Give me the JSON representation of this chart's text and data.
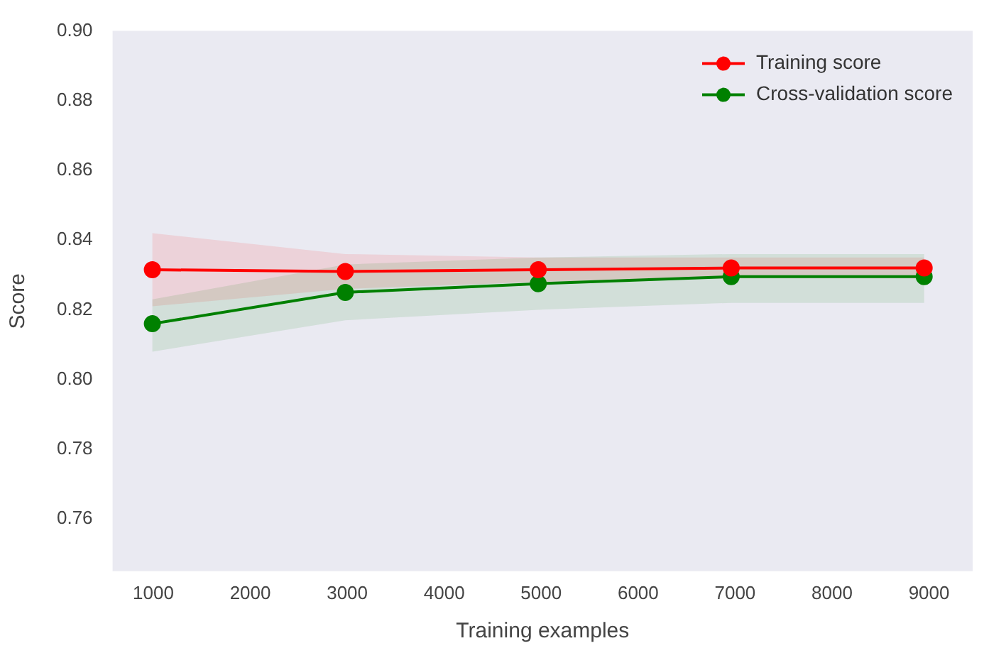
{
  "chart_data": {
    "type": "line",
    "xlabel": "Training examples",
    "ylabel": "Score",
    "x": [
      990,
      2980,
      4970,
      6960,
      8950
    ],
    "xlim": [
      580,
      9450
    ],
    "xticks": [
      1000,
      2000,
      3000,
      4000,
      5000,
      6000,
      7000,
      8000,
      9000
    ],
    "ylim": [
      0.745,
      0.9
    ],
    "yticks": [
      {
        "value": 0.76,
        "label": "0.76"
      },
      {
        "value": 0.78,
        "label": "0.78"
      },
      {
        "value": 0.8,
        "label": "0.80"
      },
      {
        "value": 0.82,
        "label": "0.82"
      },
      {
        "value": 0.84,
        "label": "0.84"
      },
      {
        "value": 0.86,
        "label": "0.86"
      },
      {
        "value": 0.88,
        "label": "0.88"
      },
      {
        "value": 0.9,
        "label": "0.90"
      }
    ],
    "series": [
      {
        "name": "Training score",
        "color": "#ff0000",
        "values": [
          0.8315,
          0.831,
          0.8315,
          0.832,
          0.832
        ],
        "lower": [
          0.821,
          0.826,
          0.828,
          0.829,
          0.829
        ],
        "upper": [
          0.842,
          0.836,
          0.835,
          0.835,
          0.835
        ]
      },
      {
        "name": "Cross-validation score",
        "color": "#008000",
        "values": [
          0.816,
          0.825,
          0.8275,
          0.8295,
          0.8295
        ],
        "lower": [
          0.808,
          0.817,
          0.82,
          0.822,
          0.822
        ],
        "upper": [
          0.823,
          0.833,
          0.835,
          0.836,
          0.836
        ]
      }
    ],
    "grid": false,
    "legend": "top right",
    "marker": "circle",
    "line_style": "solid"
  }
}
